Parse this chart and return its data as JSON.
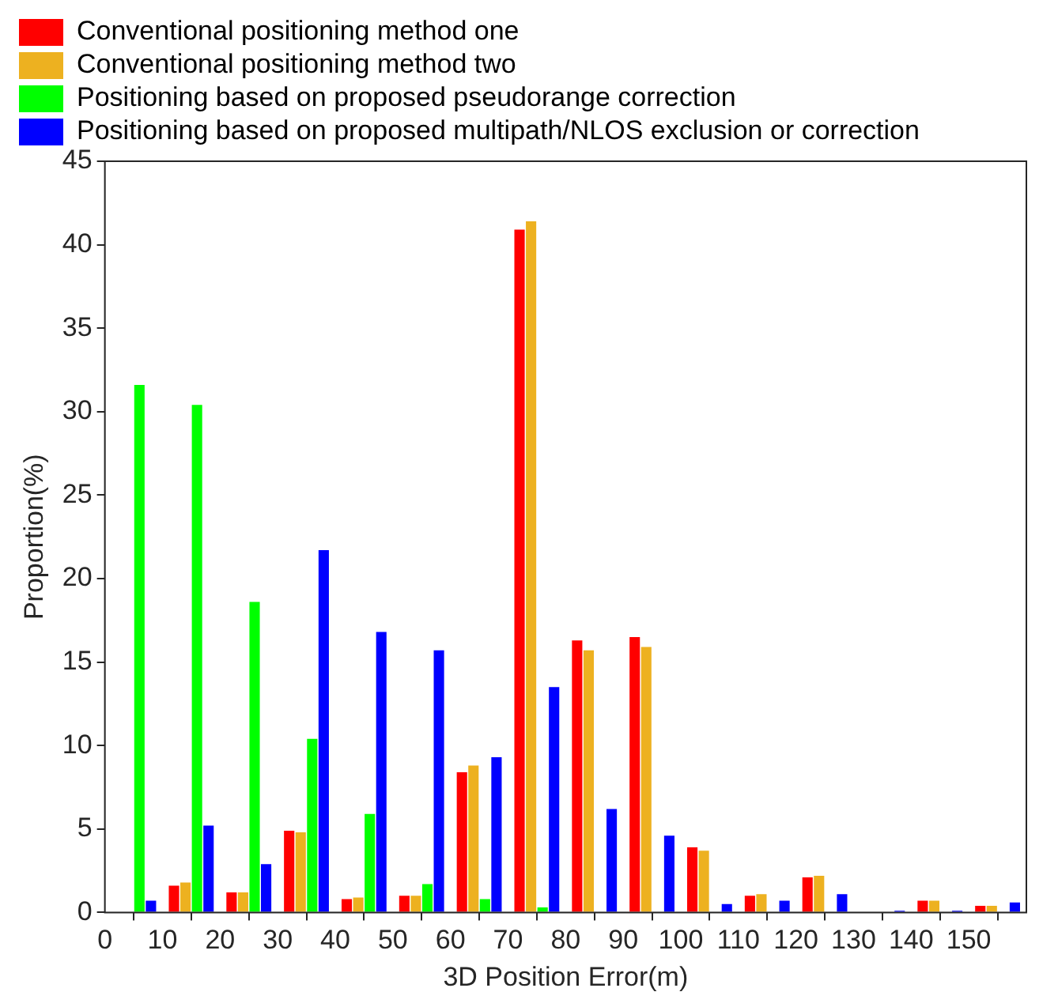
{
  "chart_data": {
    "type": "bar",
    "xlabel": "3D Position Error(m)",
    "ylabel": "Proportion(%)",
    "x": [
      5,
      15,
      25,
      35,
      45,
      55,
      65,
      75,
      85,
      95,
      105,
      115,
      125,
      135,
      145,
      155
    ],
    "series": [
      {
        "name": "Conventional positioning method one",
        "color": "#ff0000",
        "values": [
          0,
          1.6,
          1.2,
          4.9,
          0.8,
          1.0,
          8.4,
          40.9,
          16.3,
          16.5,
          3.9,
          1.0,
          2.1,
          0,
          0.7,
          0.4
        ]
      },
      {
        "name": "Conventional positioning method two",
        "color": "#edb120",
        "values": [
          0,
          1.8,
          1.2,
          4.8,
          0.9,
          1.0,
          8.8,
          41.4,
          15.7,
          15.9,
          3.7,
          1.1,
          2.2,
          0,
          0.7,
          0.4
        ]
      },
      {
        "name": "Positioning based on proposed pseudorange correction",
        "color": "#00ff00",
        "values": [
          31.6,
          30.4,
          18.6,
          10.4,
          5.9,
          1.7,
          0.8,
          0.3,
          0,
          0,
          0,
          0,
          0,
          0,
          0,
          0
        ]
      },
      {
        "name": "Positioning based on proposed multipath/NLOS exclusion or correction",
        "color": "#0000ff",
        "values": [
          0.7,
          5.2,
          2.9,
          21.7,
          16.8,
          15.7,
          9.3,
          13.5,
          6.2,
          4.6,
          0.5,
          0.7,
          1.1,
          0.1,
          0.1,
          0.6
        ]
      }
    ],
    "xlim": [
      0,
      160
    ],
    "xticks": [
      0,
      10,
      20,
      30,
      40,
      50,
      60,
      70,
      80,
      90,
      100,
      110,
      120,
      130,
      140,
      150
    ],
    "ylim": [
      0,
      45
    ],
    "yticks": [
      0,
      5,
      10,
      15,
      20,
      25,
      30,
      35,
      40,
      45
    ],
    "grid": false,
    "legend": "top"
  }
}
